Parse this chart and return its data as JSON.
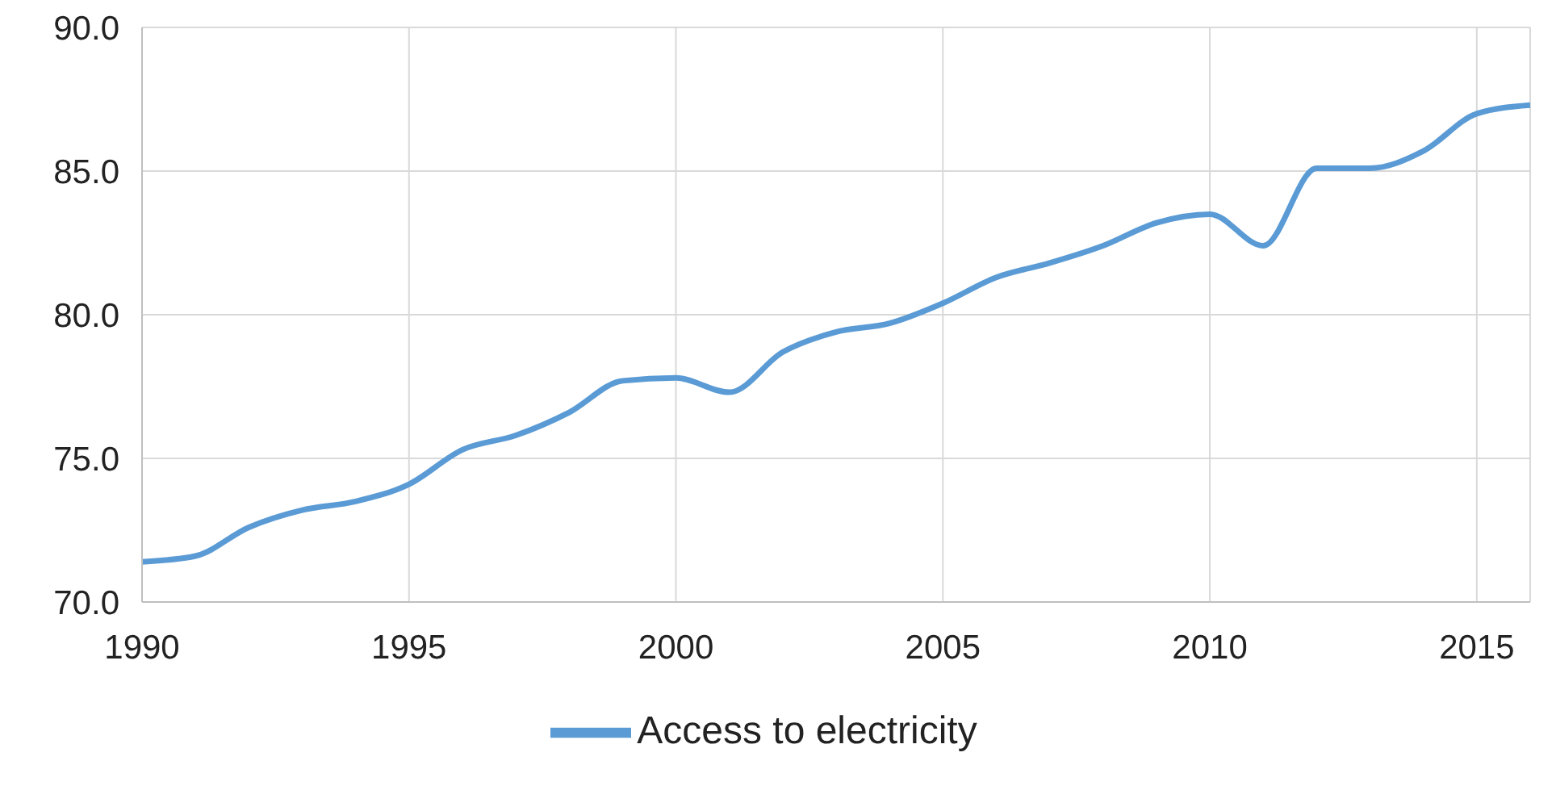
{
  "chart_data": {
    "type": "line",
    "x": [
      1990,
      1991,
      1992,
      1993,
      1994,
      1995,
      1996,
      1997,
      1998,
      1999,
      2000,
      2001,
      2002,
      2003,
      2004,
      2005,
      2006,
      2007,
      2008,
      2009,
      2010,
      2011,
      2012,
      2013,
      2014,
      2015,
      2016
    ],
    "series": [
      {
        "name": "Access to electricity",
        "color": "#5b9bd5",
        "values": [
          71.4,
          71.6,
          72.6,
          73.2,
          73.5,
          74.1,
          75.3,
          75.8,
          76.6,
          77.7,
          77.8,
          77.3,
          78.7,
          79.4,
          79.7,
          80.4,
          81.3,
          81.8,
          82.4,
          83.2,
          83.5,
          82.4,
          85.1,
          85.1,
          85.7,
          87.0,
          87.3
        ]
      }
    ],
    "xlim": [
      1990,
      2016
    ],
    "xticks": [
      1990,
      1995,
      2000,
      2005,
      2010,
      2015
    ],
    "ylim": [
      70,
      90
    ],
    "yticks": [
      {
        "value": 70,
        "label": "70.0"
      },
      {
        "value": 75,
        "label": "75.0"
      },
      {
        "value": 80,
        "label": "80.0"
      },
      {
        "value": 85,
        "label": "85.0"
      },
      {
        "value": 90,
        "label": "90.0"
      }
    ],
    "grid": true,
    "legend": "bottom",
    "marker": "none",
    "line_style": "solid"
  }
}
